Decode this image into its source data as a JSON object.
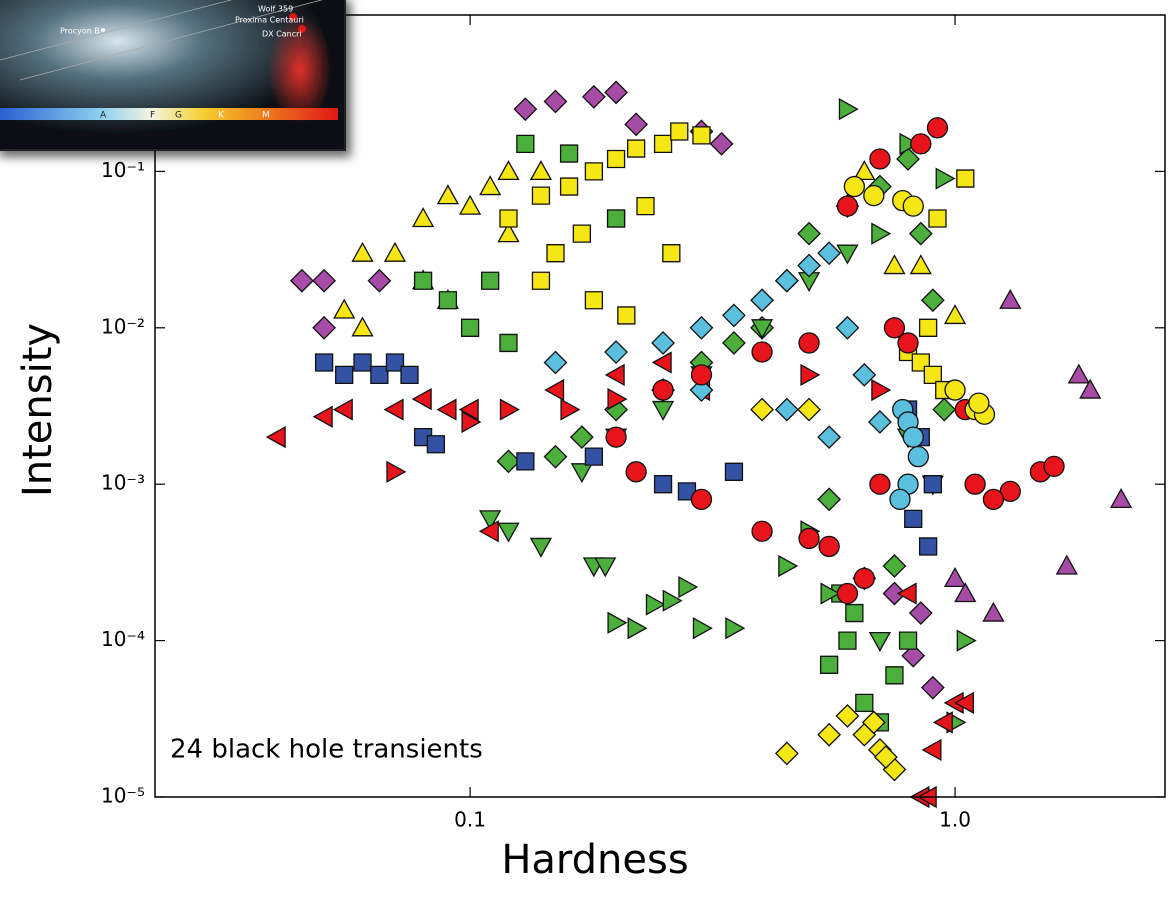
{
  "chart_data": {
    "type": "scatter",
    "xlabel": "Hardness",
    "ylabel": "Intensity",
    "annotation": "24 black hole transients",
    "xscale": "log",
    "yscale": "log",
    "xlim": [
      0.0224,
      2.71
    ],
    "ylim": [
      1e-05,
      1
    ],
    "xticks": [
      0.1,
      {
        "value": 1,
        "label": "1.0"
      }
    ],
    "yticks": [
      {
        "value": 1e-05,
        "label": "10⁻⁵"
      },
      {
        "value": 0.0001,
        "label": "10⁻⁴"
      },
      {
        "value": 0.001,
        "label": "10⁻³"
      },
      {
        "value": 0.01,
        "label": "10⁻²"
      },
      {
        "value": 0.1,
        "label": "10⁻¹"
      }
    ],
    "series": [
      {
        "color": "#a64ca6",
        "marker": "diamond",
        "x": [
          0.13,
          0.15,
          0.18,
          0.2,
          0.22,
          0.3,
          0.33,
          0.045,
          0.05,
          0.065,
          0.05,
          0.75,
          0.85,
          0.82,
          0.9
        ],
        "y": [
          0.25,
          0.28,
          0.3,
          0.32,
          0.2,
          0.18,
          0.15,
          0.02,
          0.02,
          0.02,
          0.01,
          0.0002,
          0.00015,
          8e-05,
          5e-05
        ]
      },
      {
        "color": "#f5e614",
        "marker": "triangle-up",
        "x": [
          0.06,
          0.07,
          0.08,
          0.09,
          0.1,
          0.11,
          0.12,
          0.14,
          0.08,
          0.09,
          0.055,
          0.06,
          0.12,
          0.65,
          0.75,
          0.85,
          1.0
        ],
        "y": [
          0.03,
          0.03,
          0.05,
          0.07,
          0.06,
          0.08,
          0.1,
          0.1,
          0.02,
          0.015,
          0.013,
          0.01,
          0.04,
          0.1,
          0.025,
          0.025,
          0.012
        ]
      },
      {
        "color": "#f5e614",
        "marker": "square",
        "x": [
          0.12,
          0.14,
          0.16,
          0.18,
          0.2,
          0.22,
          0.25,
          0.27,
          0.3,
          0.15,
          0.17,
          0.2,
          0.23,
          0.26,
          0.14,
          0.18,
          0.21,
          0.8,
          0.85,
          0.9,
          0.95,
          0.88,
          0.92,
          1.05
        ],
        "y": [
          0.05,
          0.07,
          0.08,
          0.1,
          0.12,
          0.14,
          0.15,
          0.18,
          0.17,
          0.03,
          0.04,
          0.05,
          0.06,
          0.03,
          0.02,
          0.015,
          0.012,
          0.007,
          0.006,
          0.005,
          0.004,
          0.01,
          0.05,
          0.09
        ]
      },
      {
        "color": "#4caf3c",
        "marker": "square",
        "x": [
          0.08,
          0.09,
          0.11,
          0.13,
          0.16,
          0.2,
          0.1,
          0.12,
          0.6,
          0.55,
          0.65,
          0.7,
          0.75,
          0.8,
          0.62,
          0.58
        ],
        "y": [
          0.02,
          0.015,
          0.02,
          0.15,
          0.13,
          0.05,
          0.01,
          0.008,
          0.0001,
          7e-05,
          4e-05,
          3e-05,
          6e-05,
          0.0001,
          0.00015,
          0.0002
        ]
      },
      {
        "color": "#4caf3c",
        "marker": "diamond",
        "x": [
          0.12,
          0.15,
          0.17,
          0.2,
          0.25,
          0.3,
          0.35,
          0.4,
          0.45,
          0.5,
          0.6,
          0.7,
          0.8,
          0.85,
          0.9,
          0.95,
          0.75,
          0.65,
          0.55
        ],
        "y": [
          0.0014,
          0.0015,
          0.002,
          0.003,
          0.004,
          0.006,
          0.008,
          0.01,
          0.02,
          0.04,
          0.06,
          0.08,
          0.12,
          0.04,
          0.015,
          0.003,
          0.0003,
          0.00025,
          0.0008
        ]
      },
      {
        "color": "#4caf3c",
        "marker": "triangle-down",
        "x": [
          0.11,
          0.12,
          0.14,
          0.18,
          0.19,
          0.17,
          0.2,
          0.25,
          0.3,
          0.4,
          0.5,
          0.6,
          0.8,
          0.9,
          0.7
        ],
        "y": [
          0.0006,
          0.0005,
          0.0004,
          0.0003,
          0.0003,
          0.0012,
          0.002,
          0.003,
          0.005,
          0.01,
          0.02,
          0.03,
          0.002,
          0.001,
          0.0001
        ]
      },
      {
        "color": "#4caf3c",
        "marker": "triangle-right",
        "x": [
          0.2,
          0.22,
          0.24,
          0.26,
          0.28,
          0.3,
          0.35,
          0.55,
          0.5,
          0.45,
          1.0,
          1.05,
          0.6,
          0.8,
          0.95,
          0.7
        ],
        "y": [
          0.00013,
          0.00012,
          0.00017,
          0.00018,
          0.00022,
          0.00012,
          0.00012,
          0.0002,
          0.0005,
          0.0003,
          3e-05,
          0.0001,
          0.25,
          0.15,
          0.09,
          0.04
        ]
      },
      {
        "color": "#e8141c",
        "marker": "triangle-left",
        "x": [
          0.04,
          0.05,
          0.055,
          0.07,
          0.11,
          0.08,
          0.09,
          0.1,
          0.15,
          0.2,
          0.25,
          0.3,
          0.85,
          0.9,
          0.95,
          1.0,
          0.8,
          1.05,
          0.88
        ],
        "y": [
          0.002,
          0.0027,
          0.003,
          0.003,
          0.0005,
          0.0035,
          0.003,
          0.003,
          0.004,
          0.005,
          0.006,
          0.004,
          1e-05,
          2e-05,
          3e-05,
          4e-05,
          0.0002,
          4e-05,
          1e-05
        ]
      },
      {
        "color": "#e8141c",
        "marker": "triangle-right",
        "x": [
          0.07,
          0.1,
          0.12,
          0.16,
          0.2,
          0.5,
          0.7
        ],
        "y": [
          0.0012,
          0.0025,
          0.003,
          0.003,
          0.0035,
          0.005,
          0.004
        ]
      },
      {
        "color": "#3352a4",
        "marker": "square",
        "x": [
          0.05,
          0.055,
          0.06,
          0.065,
          0.07,
          0.075,
          0.08,
          0.085,
          0.13,
          0.18,
          0.25,
          0.28,
          0.35,
          0.8,
          0.85,
          0.9,
          0.82,
          0.88
        ],
        "y": [
          0.006,
          0.005,
          0.006,
          0.005,
          0.006,
          0.005,
          0.002,
          0.0018,
          0.0014,
          0.0015,
          0.001,
          0.0009,
          0.0012,
          0.003,
          0.002,
          0.001,
          0.0006,
          0.0004
        ]
      },
      {
        "color": "#5bc0de",
        "marker": "diamond",
        "x": [
          0.15,
          0.2,
          0.25,
          0.3,
          0.35,
          0.4,
          0.45,
          0.5,
          0.55,
          0.6,
          0.65,
          0.3,
          0.45,
          0.55,
          0.7
        ],
        "y": [
          0.006,
          0.007,
          0.008,
          0.01,
          0.012,
          0.015,
          0.02,
          0.025,
          0.03,
          0.01,
          0.005,
          0.004,
          0.003,
          0.002,
          0.0025
        ]
      },
      {
        "color": "#a64ca6",
        "marker": "triangle-up",
        "x": [
          1.3,
          1.8,
          1.9,
          2.2,
          1.7,
          1.0,
          1.2,
          1.05
        ],
        "y": [
          0.015,
          0.005,
          0.004,
          0.0008,
          0.0003,
          0.00025,
          0.00015,
          0.0002
        ]
      },
      {
        "color": "#f5e614",
        "marker": "diamond",
        "x": [
          0.45,
          0.55,
          0.6,
          0.65,
          0.7,
          0.75,
          0.68,
          0.72,
          0.4,
          0.5
        ],
        "y": [
          1.9e-05,
          2.5e-05,
          3.3e-05,
          2.5e-05,
          2e-05,
          1.5e-05,
          3e-05,
          1.8e-05,
          0.003,
          0.003
        ]
      },
      {
        "color": "#e8141c",
        "marker": "circle",
        "x": [
          0.92,
          0.85,
          0.7,
          0.6,
          0.75,
          0.5,
          0.4,
          0.3,
          0.25,
          0.2,
          0.22,
          0.3,
          0.4,
          0.5,
          0.55,
          0.6,
          0.65,
          0.7,
          1.1,
          1.3,
          1.5,
          1.6,
          1.2,
          0.8,
          1.05
        ],
        "y": [
          0.19,
          0.15,
          0.12,
          0.06,
          0.01,
          0.008,
          0.007,
          0.005,
          0.004,
          0.002,
          0.0012,
          0.0008,
          0.0005,
          0.00045,
          0.0004,
          0.0002,
          0.00025,
          0.001,
          0.001,
          0.0009,
          0.0012,
          0.0013,
          0.0008,
          0.008,
          0.003
        ]
      },
      {
        "color": "#5bc0de",
        "marker": "circle",
        "x": [
          0.78,
          0.8,
          0.82,
          0.84,
          0.8,
          0.77
        ],
        "y": [
          0.003,
          0.0025,
          0.002,
          0.0015,
          0.001,
          0.0008
        ]
      },
      {
        "color": "#f5e614",
        "marker": "circle",
        "x": [
          0.62,
          0.68,
          0.78,
          0.82,
          1.0,
          1.1,
          1.15,
          1.12
        ],
        "y": [
          0.08,
          0.07,
          0.065,
          0.06,
          0.004,
          0.003,
          0.0028,
          0.0033
        ]
      }
    ]
  },
  "inset": {
    "labels": [
      "Wolf 359",
      "Proxima Centauri",
      "DX Cancri",
      "Procyon B"
    ],
    "spectral_classes": [
      "A",
      "F",
      "G",
      "K",
      "M"
    ]
  }
}
